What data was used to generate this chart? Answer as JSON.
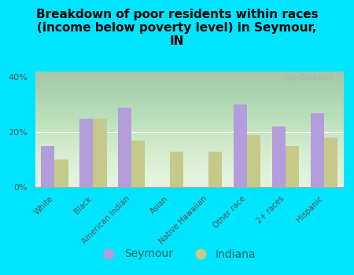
{
  "title": "Breakdown of poor residents within races\n(income below poverty level) in Seymour,\nIN",
  "categories": [
    "White",
    "Black",
    "American Indian",
    "Asian",
    "Native Hawaiian",
    "Other race",
    "2+ races",
    "Hispanic"
  ],
  "seymour_values": [
    15,
    25,
    29,
    0,
    0,
    30,
    22,
    27
  ],
  "indiana_values": [
    10,
    25,
    17,
    13,
    13,
    19,
    15,
    18
  ],
  "seymour_color": "#b39ddb",
  "indiana_color": "#c5c98a",
  "background_color": "#00e5ff",
  "ylim": [
    0,
    42
  ],
  "yticks": [
    0,
    20,
    40
  ],
  "ytick_labels": [
    "0%",
    "20%",
    "40%"
  ],
  "bar_width": 0.35,
  "title_fontsize": 11,
  "legend_labels": [
    "Seymour",
    "Indiana"
  ],
  "watermark": "City-Data.com"
}
